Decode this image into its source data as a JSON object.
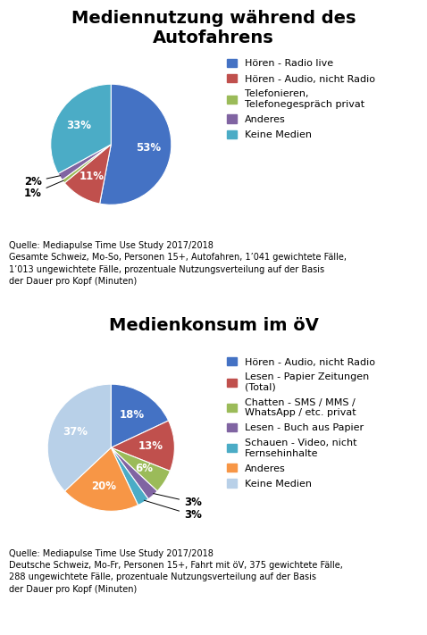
{
  "chart_data": [
    {
      "type": "pie",
      "title": "Mediennutzung während des\nAutofahrens",
      "categories": [
        "Hören - Radio live",
        "Hören - Audio, nicht Radio",
        "Telefonieren,\nTelefonegespräch privat",
        "Anderes",
        "Keine Medien"
      ],
      "values": [
        53,
        11,
        1,
        2,
        33
      ],
      "value_labels": [
        "53%",
        "11%",
        "1%",
        "2%",
        "33%"
      ],
      "colors": [
        "#4472C4",
        "#C0504D",
        "#9BBB59",
        "#8064A2",
        "#4BACC6"
      ],
      "data_labels": true,
      "legend": "upper left",
      "annotations": [
        "Quelle: Mediapulse Time Use Study 2017/2018\nGesamte Schweiz, Mo-So, Personen 15+, Autofahren, 1’041 gewichtete Fälle,\n1’013 ungewichtete Fälle, prozentuale Nutzungsverteilung auf der Basis\nder Dauer pro Kopf (Minuten)"
      ]
    },
    {
      "type": "pie",
      "title": "Medienkonsum im öV",
      "categories": [
        "Hören - Audio, nicht Radio",
        "Lesen - Papier Zeitungen\n(Total)",
        "Chatten - SMS / MMS /\nWhatsApp / etc. privat",
        "Lesen - Buch aus Papier",
        "Schauen - Video, nicht\nFernsehinhalte",
        "Anderes",
        "Keine Medien"
      ],
      "values": [
        18,
        13,
        6,
        3,
        3,
        20,
        37
      ],
      "value_labels": [
        "18%",
        "13%",
        "6%",
        "3%",
        "3%",
        "20%",
        "37%"
      ],
      "colors": [
        "#4472C4",
        "#C0504D",
        "#9BBB59",
        "#8064A2",
        "#4BACC6",
        "#F79646",
        "#B8D0E8"
      ],
      "data_labels": true,
      "legend": "upper left",
      "annotations": [
        "Quelle: Mediapulse Time Use Study 2017/2018\nDeutsche Schweiz, Mo-Fr, Personen 15+, Fahrt mit öV, 375 gewichtete Fälle,\n288 ungewichtete Fälle, prozentuale Nutzungsverteilung auf der Basis\nder Dauer pro Kopf (Minuten)"
      ]
    }
  ]
}
